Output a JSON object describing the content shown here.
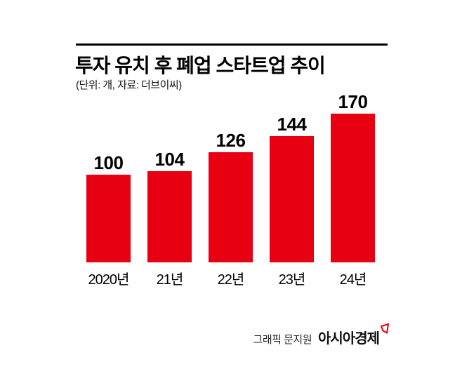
{
  "header": {
    "title": "투자 유치 후 폐업 스타트업 추이",
    "subtitle": "(단위: 개, 자료: 더브이씨)"
  },
  "chart_data": {
    "type": "bar",
    "title": "투자 유치 후 폐업 스타트업 추이",
    "unit_source_note": "(단위: 개, 자료: 더브이씨)",
    "categories": [
      "2020년",
      "21년",
      "22년",
      "23년",
      "24년"
    ],
    "values": [
      100,
      104,
      126,
      144,
      170
    ],
    "value_labels_shown": true,
    "bar_color": "#e60012",
    "ylim": [
      0,
      170
    ],
    "grid": false,
    "legend": "none"
  },
  "footer": {
    "credit": "그래픽 문지원",
    "brand": "아시아경제",
    "brand_mark": "asiae-logo-mark",
    "brand_mark_color": "#e60012"
  }
}
